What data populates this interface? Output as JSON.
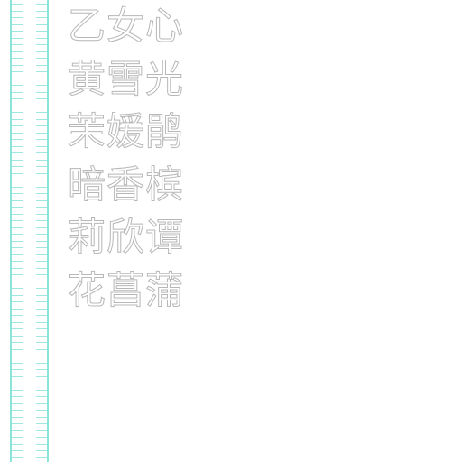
{
  "colors": {
    "ruler_line": "#8ce3da",
    "ruler_tick": "#9fe8e0",
    "text_outline": "#b7b7b7",
    "text_fill": "#ffffff",
    "background": "#ffffff"
  },
  "names": [
    "乙女心",
    "黄雪光",
    "茉媛鹃",
    "暗香槟",
    "莉欣谭",
    "花菖蒲"
  ]
}
